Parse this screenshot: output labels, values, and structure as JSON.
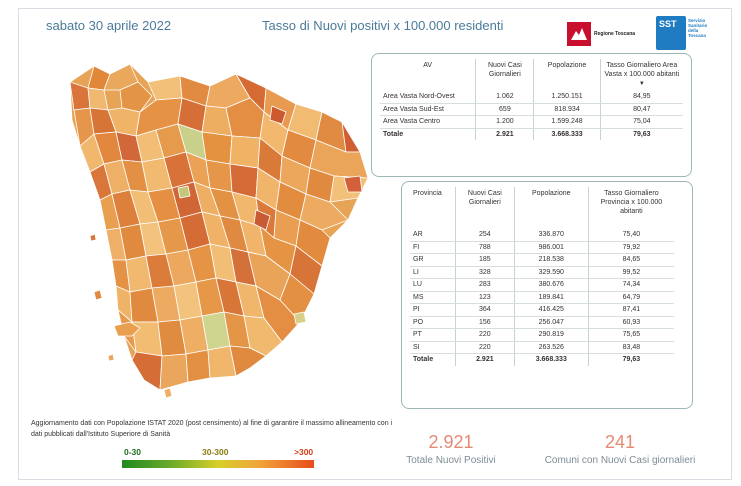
{
  "header": {
    "date": "sabato 30 aprile 2022",
    "title": "Tasso di Nuovi positivi x 100.000 residenti",
    "logo_regione": "Regione Toscana",
    "logo_sst": "SST",
    "logo_sst_sub": "Servizio Sanitario della Toscana"
  },
  "colors": {
    "title": "#4a7b99",
    "kpi": "#e58a73",
    "map_low": "#1f8a1f",
    "map_mid": "#d7cf2a",
    "map_high": "#e74c1c"
  },
  "table_av": {
    "headers": [
      "AV",
      "Nuovi Casi Giornalieri",
      "Popolazione",
      "Tasso Giornaliero Area Vasta x 100.000 abitanti"
    ],
    "rows": [
      [
        "Area Vasta Nord-Ovest",
        "1.062",
        "1.250.151",
        "84,95"
      ],
      [
        "Area Vasta Sud-Est",
        "659",
        "818.934",
        "80,47"
      ],
      [
        "Area Vasta Centro",
        "1.200",
        "1.599.248",
        "75,04"
      ]
    ],
    "total": [
      "Totale",
      "2.921",
      "3.668.333",
      "79,63"
    ]
  },
  "table_prov": {
    "headers": [
      "Provincia",
      "Nuovi Casi Giornalieri",
      "Popolazione",
      "Tasso Giornaliero Provincia x 100.000 abitanti"
    ],
    "rows": [
      [
        "AR",
        "254",
        "336.870",
        "75,40"
      ],
      [
        "FI",
        "788",
        "986.001",
        "79,92"
      ],
      [
        "GR",
        "185",
        "218.538",
        "84,65"
      ],
      [
        "LI",
        "328",
        "329.590",
        "99,52"
      ],
      [
        "LU",
        "283",
        "380.676",
        "74,34"
      ],
      [
        "MS",
        "123",
        "189.841",
        "64,79"
      ],
      [
        "PI",
        "364",
        "416.425",
        "87,41"
      ],
      [
        "PO",
        "156",
        "256.047",
        "60,93"
      ],
      [
        "PT",
        "220",
        "290.819",
        "75,65"
      ],
      [
        "SI",
        "220",
        "263.526",
        "83,48"
      ]
    ],
    "total": [
      "Totale",
      "2.921",
      "3.668.333",
      "79,63"
    ]
  },
  "footer": {
    "note": "Aggiornamento dati con Popolazione ISTAT 2020 (post censimento) al fine di garantire il massimo allineamento con i dati pubblicati dall'Istituto Superiore di Sanità",
    "kpi_total_value": "2.921",
    "kpi_total_label": "Totale Nuovi Positivi",
    "kpi_comuni_value": "241",
    "kpi_comuni_label": "Comuni con Nuovi Casi giornalieri"
  },
  "legend": {
    "low": "0-30",
    "mid": "30-300",
    "high": ">300"
  }
}
